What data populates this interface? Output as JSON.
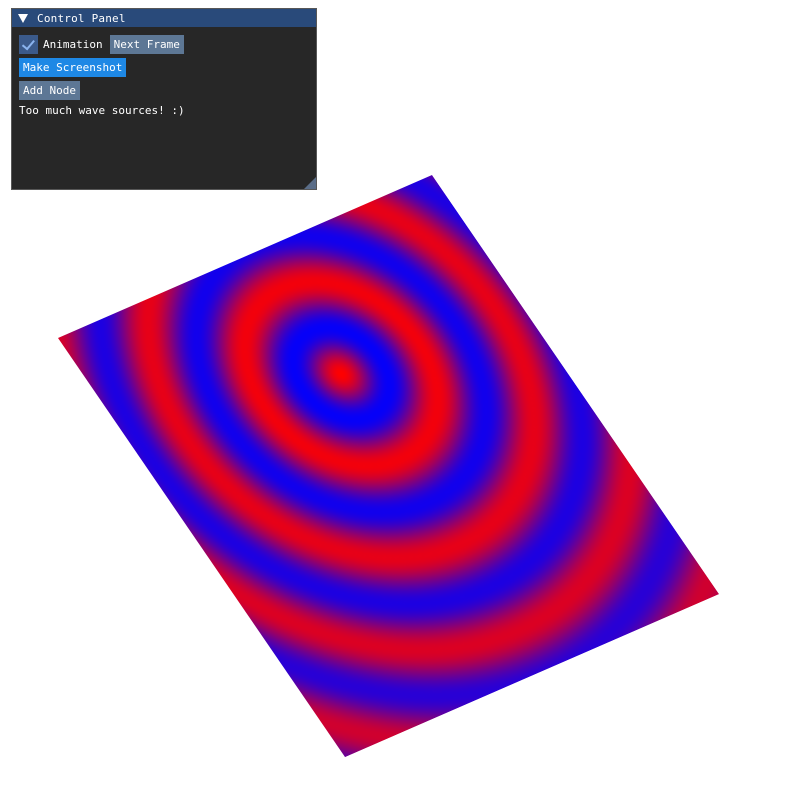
{
  "control_panel": {
    "title": "Control Panel",
    "animation_checkbox": {
      "label": "Animation",
      "checked": true
    },
    "next_frame_label": "Next Frame",
    "make_screenshot_label": "Make Screenshot",
    "add_node_label": "Add Node",
    "status_message": "Too much wave sources! :)"
  },
  "colors": {
    "wave_high": "#ff0000",
    "wave_low": "#0000ff",
    "panel_title_bar": "#294a7a",
    "button": "#5d7795",
    "button_active": "#1e88e5"
  }
}
